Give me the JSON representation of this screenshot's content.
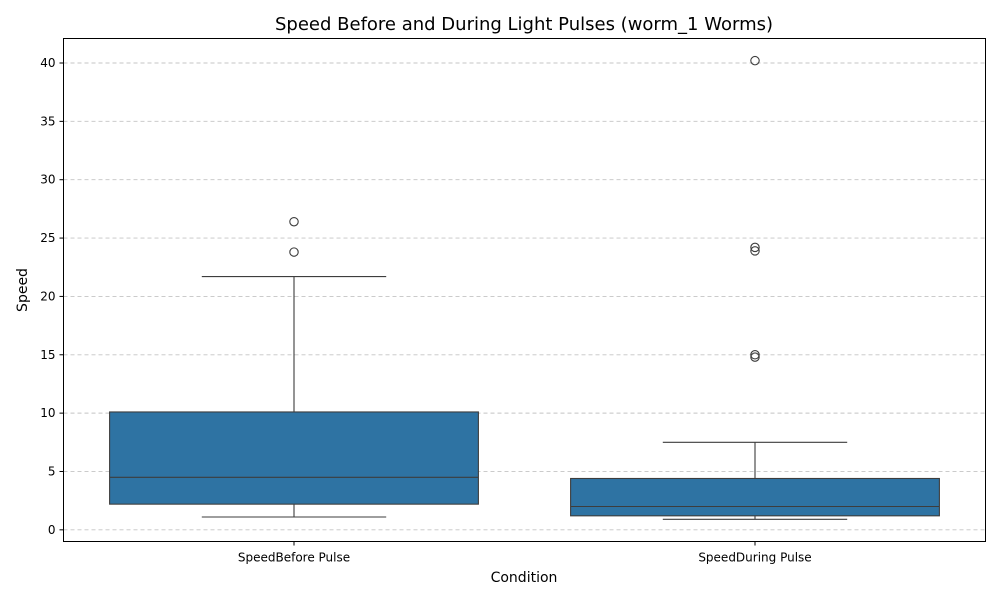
{
  "chart_data": {
    "type": "box",
    "title": "Speed Before and During Light Pulses (worm_1 Worms)",
    "xlabel": "Condition",
    "ylabel": "Speed",
    "ylim": [
      -1.0,
      42.1
    ],
    "yticks": [
      0,
      5,
      10,
      15,
      20,
      25,
      30,
      35,
      40
    ],
    "grid": "y",
    "box_color": "#2e73a3",
    "categories": [
      "SpeedBefore Pulse",
      "SpeedDuring Pulse"
    ],
    "boxes": [
      {
        "category": "SpeedBefore Pulse",
        "whisker_low": 1.1,
        "q1": 2.2,
        "median": 4.5,
        "q3": 10.1,
        "whisker_high": 21.7,
        "outliers": [
          23.8,
          26.4
        ]
      },
      {
        "category": "SpeedDuring Pulse",
        "whisker_low": 0.9,
        "q1": 1.2,
        "median": 2.0,
        "q3": 4.4,
        "whisker_high": 7.5,
        "outliers": [
          14.8,
          15.0,
          23.9,
          24.2,
          40.2
        ]
      }
    ]
  }
}
